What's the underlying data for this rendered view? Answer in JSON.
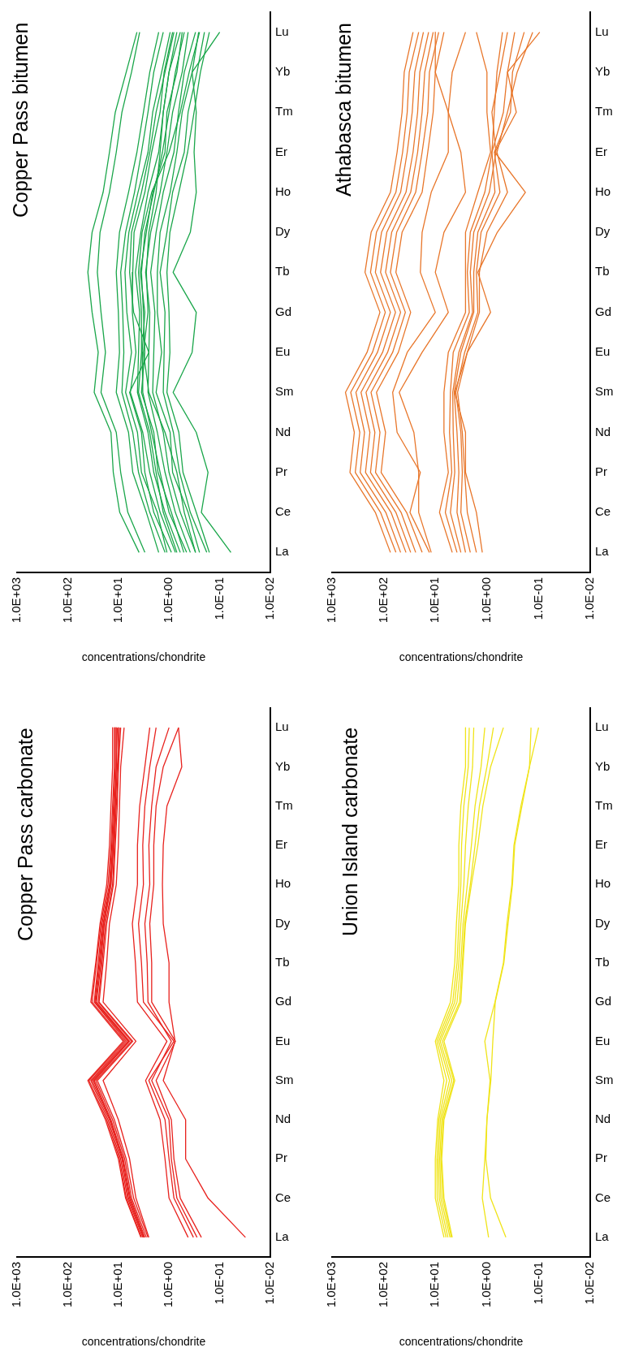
{
  "chart_data": [
    {
      "type": "line",
      "orientation": "horizontal",
      "title": "Copper Pass bitumen",
      "xlabel": "concentrations/chondrite",
      "categories": [
        "Lu",
        "Yb",
        "Tm",
        "Er",
        "Ho",
        "Dy",
        "Tb",
        "Gd",
        "Eu",
        "Sm",
        "Nd",
        "Pr",
        "Ce",
        "La"
      ],
      "log": "x",
      "xlim": [
        1000,
        0.01
      ],
      "xticks": [
        {
          "value": 1000,
          "label": "1.0E+03"
        },
        {
          "value": 100,
          "label": "1.0E+02"
        },
        {
          "value": 10,
          "label": "1.0E+01"
        },
        {
          "value": 1,
          "label": "1.0E+00"
        },
        {
          "value": 0.1,
          "label": "1.0E-01"
        },
        {
          "value": 0.01,
          "label": "1.0E-02"
        }
      ],
      "marker": "none",
      "series": [
        {
          "color": "#1aa64a",
          "values": [
            4.3,
            7,
            11.5,
            15,
            20,
            33,
            40,
            33,
            25,
            30,
            14,
            12.6,
            9.4,
            3.9
          ]
        },
        {
          "color": "#1aa64a",
          "values": [
            3.8,
            5.5,
            8.5,
            11,
            15,
            23,
            26,
            22,
            18,
            22,
            11,
            9,
            6.5,
            3.0
          ]
        },
        {
          "color": "#1aa64a",
          "values": [
            1.6,
            2.4,
            3.2,
            4.3,
            6.3,
            9.5,
            11,
            10,
            9.5,
            11,
            6.3,
            5.2,
            2.8,
            1.6
          ]
        },
        {
          "color": "#1aa64a",
          "values": [
            1.3,
            2.0,
            2.6,
            3.5,
            4.8,
            7.2,
            9,
            8.2,
            7.8,
            8.5,
            5.2,
            4.0,
            2.4,
            1.2
          ]
        },
        {
          "color": "#1aa64a",
          "values": [
            0.95,
            1.4,
            2.1,
            2.6,
            4.1,
            6.2,
            7.4,
            6.8,
            5.5,
            7.2,
            4.2,
            3.5,
            1.7,
            1.1
          ]
        },
        {
          "color": "#1aa64a",
          "values": [
            0.85,
            1.25,
            1.5,
            2.2,
            3.0,
            4.9,
            5.2,
            5.3,
            4.5,
            5.8,
            3.3,
            2.4,
            1.5,
            0.75
          ]
        },
        {
          "color": "#1aa64a",
          "values": [
            0.6,
            1.0,
            1.3,
            1.6,
            2.6,
            3.6,
            4.6,
            3.8,
            4.0,
            4.2,
            2.6,
            2.0,
            1.2,
            0.6
          ]
        },
        {
          "color": "#1aa64a",
          "values": [
            0.5,
            0.75,
            1.0,
            1.35,
            2,
            3,
            3.5,
            3.2,
            3,
            3.5,
            2,
            1.65,
            0.9,
            0.51
          ]
        },
        {
          "color": "#1aa64a",
          "values": [
            0.55,
            0.7,
            1.1,
            1.2,
            2.1,
            2.8,
            3.7,
            3.0,
            3.4,
            3.3,
            2.2,
            1.5,
            1.0,
            0.45
          ]
        },
        {
          "color": "#1aa64a",
          "values": [
            0.42,
            0.55,
            0.85,
            1.1,
            1.5,
            2.3,
            2.9,
            2.4,
            2.5,
            2.6,
            1.7,
            1.2,
            0.75,
            0.38
          ]
        },
        {
          "color": "#1aa64a",
          "values": [
            0.3,
            0.5,
            0.65,
            0.8,
            1.3,
            1.8,
            2.3,
            1.9,
            2.0,
            2.1,
            1.3,
            1.0,
            0.6,
            0.3
          ]
        },
        {
          "color": "#1aa64a",
          "values": [
            0.26,
            0.35,
            0.55,
            0.7,
            0.95,
            1.5,
            1.7,
            1.7,
            1.4,
            1.8,
            0.95,
            0.85,
            0.42,
            0.25
          ]
        },
        {
          "color": "#1aa64a",
          "values": [
            0.2,
            0.28,
            0.42,
            0.5,
            0.85,
            1.1,
            1.5,
            1.2,
            1.25,
            1.3,
            0.82,
            0.62,
            0.38,
            0.18
          ]
        },
        {
          "color": "#1aa64a",
          "values": [
            0.16,
            0.24,
            0.32,
            0.43,
            0.64,
            0.96,
            1.1,
            1.0,
            0.96,
            1.1,
            0.64,
            0.53,
            0.29,
            0.16
          ]
        },
        {
          "color": "#1aa64a",
          "values": [
            0.8,
            1.2,
            1.8,
            2.4,
            3.5,
            5.5,
            6,
            5,
            2.5,
            6,
            3.5,
            3.0,
            2.0,
            0.9
          ]
        },
        {
          "color": "#1aa64a",
          "values": [
            0.7,
            1.0,
            1.3,
            1.5,
            1.8,
            2.5,
            2.8,
            2.6,
            3.2,
            2.5,
            1.2,
            0.7,
            0.5,
            0.3
          ]
        },
        {
          "color": "#1aa64a",
          "values": [
            0.25,
            0.4,
            0.6,
            1.0,
            2.2,
            3.4,
            4.0,
            3.5,
            3.5,
            4.0,
            2.4,
            1.8,
            1.3,
            0.7
          ]
        },
        {
          "color": "#1aa64a",
          "values": [
            0.1,
            0.35,
            0.29,
            0.32,
            0.29,
            0.38,
            0.83,
            0.29,
            0.35,
            0.83,
            0.29,
            0.17,
            0.23,
            0.06
          ]
        }
      ]
    },
    {
      "type": "line",
      "orientation": "horizontal",
      "title": "Athabasca bitumen",
      "xlabel": "concentrations/chondrite",
      "categories": [
        "Lu",
        "Yb",
        "Tm",
        "Er",
        "Ho",
        "Dy",
        "Tb",
        "Gd",
        "Eu",
        "Sm",
        "Nd",
        "Pr",
        "Ce",
        "La"
      ],
      "log": "x",
      "xlim": [
        1000,
        0.01
      ],
      "xticks": [
        {
          "value": 1000,
          "label": "1.0E+03"
        },
        {
          "value": 100,
          "label": "1.0E+02"
        },
        {
          "value": 10,
          "label": "1.0E+01"
        },
        {
          "value": 1,
          "label": "1.0E+00"
        },
        {
          "value": 0.1,
          "label": "1.0E-01"
        },
        {
          "value": 0.01,
          "label": "1.0E-02"
        }
      ],
      "marker": "none",
      "series": [
        {
          "color": "#e8762a",
          "values": [
            27,
            40,
            44,
            55,
            74,
            175,
            230,
            118,
            210,
            550,
            370,
            450,
            145,
            74
          ]
        },
        {
          "color": "#e8762a",
          "values": [
            21,
            32,
            35,
            43,
            58,
            138,
            180,
            93,
            165,
            435,
            290,
            355,
            115,
            58
          ]
        },
        {
          "color": "#e8762a",
          "values": [
            17,
            25,
            28,
            35,
            47,
            110,
            145,
            74,
            132,
            345,
            235,
            285,
            91,
            47
          ]
        },
        {
          "color": "#e8762a",
          "values": [
            13.5,
            20,
            22,
            27,
            37,
            87,
            115,
            59,
            105,
            275,
            185,
            225,
            72,
            37
          ]
        },
        {
          "color": "#e8762a",
          "values": [
            11,
            16,
            18,
            22,
            30,
            70,
            92,
            47,
            84,
            220,
            148,
            180,
            58,
            30
          ]
        },
        {
          "color": "#e8762a",
          "values": [
            8.6,
            13,
            14,
            18,
            24,
            56,
            74,
            38,
            67,
            176,
            118,
            144,
            46,
            24
          ]
        },
        {
          "color": "#e8762a",
          "values": [
            6.8,
            10,
            11,
            14,
            18,
            44,
            58,
            30,
            52,
            138,
            92,
            112,
            36,
            18
          ]
        },
        {
          "color": "#e8762a",
          "values": [
            10,
            10,
            5.6,
            5.6,
            12,
            18,
            19.5,
            10,
            35,
            67,
            55,
            19.5,
            31,
            13
          ]
        },
        {
          "color": "#e8762a",
          "values": [
            2.6,
            4.7,
            5.6,
            3.2,
            2.6,
            6.8,
            10,
            5.6,
            18,
            50,
            26,
            21,
            21,
            12
          ]
        },
        {
          "color": "#e8762a",
          "values": [
            1.6,
            1.0,
            1.0,
            0.85,
            1.5,
            2.6,
            2.6,
            2.6,
            5.6,
            6.8,
            6.8,
            5.6,
            8.3,
            4.7
          ]
        },
        {
          "color": "#e8762a",
          "values": [
            0.5,
            0.64,
            0.72,
            0.8,
            1.1,
            2.1,
            2.4,
            2.2,
            4.5,
            5.1,
            5.3,
            4.8,
            6.4,
            3.8
          ]
        },
        {
          "color": "#e8762a",
          "values": [
            0.4,
            0.56,
            0.8,
            0.67,
            0.9,
            1.8,
            2.1,
            1.9,
            3.5,
            4.6,
            4.5,
            4.2,
            5.1,
            3.2
          ]
        },
        {
          "color": "#e8762a",
          "values": [
            0.29,
            0.4,
            0.48,
            0.8,
            0.7,
            1.5,
            1.8,
            1.8,
            3.2,
            4.3,
            3.8,
            3.5,
            3.8,
            2.6
          ]
        },
        {
          "color": "#e8762a",
          "values": [
            0.19,
            0.32,
            0.35,
            0.72,
            0.56,
            1.3,
            1.6,
            1.5,
            2.7,
            4.0,
            3.2,
            3.0,
            3.2,
            2.1
          ]
        },
        {
          "color": "#e8762a",
          "values": [
            0.13,
            0.26,
            0.4,
            0.64,
            0.4,
            1.0,
            1.4,
            1.4,
            2.4,
            3.7,
            3.0,
            2.7,
            2.4,
            1.6
          ]
        },
        {
          "color": "#e8762a",
          "values": [
            0.095,
            0.4,
            0.27,
            0.7,
            0.18,
            0.63,
            1.5,
            0.85,
            2.4,
            4.2,
            2.6,
            2.6,
            1.6,
            1.23
          ]
        }
      ]
    },
    {
      "type": "line",
      "orientation": "horizontal",
      "title": "Copper Pass carbonate",
      "xlabel": "concentrations/chondrite",
      "categories": [
        "Lu",
        "Yb",
        "Tm",
        "Er",
        "Ho",
        "Dy",
        "Tb",
        "Gd",
        "Eu",
        "Sm",
        "Nd",
        "Pr",
        "Ce",
        "La"
      ],
      "log": "x",
      "xlim": [
        1000,
        0.01
      ],
      "xticks": [
        {
          "value": 1000,
          "label": "1.0E+03"
        },
        {
          "value": 100,
          "label": "1.0E+02"
        },
        {
          "value": 10,
          "label": "1.0E+01"
        },
        {
          "value": 1,
          "label": "1.0E+00"
        },
        {
          "value": 0.1,
          "label": "1.0E-01"
        },
        {
          "value": 0.01,
          "label": "1.0E-02"
        }
      ],
      "marker": "none",
      "series": [
        {
          "color": "#e8221e",
          "values": [
            12,
            12,
            13,
            14,
            16,
            22,
            27,
            33,
            7.5,
            38,
            17,
            9.5,
            7,
            3.5
          ]
        },
        {
          "color": "#e8221e",
          "values": [
            11,
            11,
            12,
            13,
            14.5,
            20,
            24,
            29,
            6.5,
            33,
            15,
            8.5,
            6.3,
            3.2
          ]
        },
        {
          "color": "#e8221e",
          "values": [
            10.5,
            11,
            11.5,
            12.5,
            14,
            19,
            22,
            27,
            6,
            30,
            14,
            8,
            5.8,
            3.0
          ]
        },
        {
          "color": "#e8221e",
          "values": [
            11.5,
            11.5,
            12.5,
            13.5,
            15,
            21,
            25,
            30,
            7,
            35,
            16,
            9,
            6.6,
            3.3
          ]
        },
        {
          "color": "#e8221e",
          "values": [
            10,
            10,
            11,
            12,
            13,
            18,
            21,
            25,
            5.5,
            28,
            13,
            7.5,
            5.5,
            2.8
          ]
        },
        {
          "color": "#e8221e",
          "values": [
            13,
            13,
            14,
            15,
            17,
            23,
            28,
            35,
            8,
            40,
            18,
            10,
            7.2,
            3.6
          ]
        },
        {
          "color": "#e8221e",
          "values": [
            9.5,
            10.5,
            11.5,
            12.5,
            14,
            19.5,
            23,
            28,
            6.2,
            31,
            14.5,
            8.2,
            6,
            3.1
          ]
        },
        {
          "color": "#e8221e",
          "values": [
            9,
            10,
            10.5,
            11.5,
            12.5,
            17,
            20,
            24,
            5.2,
            26,
            12,
            7,
            5,
            2.6
          ]
        },
        {
          "color": "#e8221e",
          "values": [
            7.7,
            9,
            9.5,
            10,
            11,
            15,
            17,
            20,
            4.5,
            20,
            10,
            6,
            4.5,
            2.5
          ]
        },
        {
          "color": "#e8221e",
          "values": [
            2.4,
            3.0,
            3.8,
            4.2,
            4.2,
            5.3,
            4.6,
            4.2,
            1.1,
            2.9,
            1.5,
            1.2,
            1.0,
            0.42
          ]
        },
        {
          "color": "#e8221e",
          "values": [
            1.8,
            2.4,
            3,
            3.3,
            3.2,
            4,
            3.5,
            3.2,
            0.8,
            2.5,
            1.2,
            1.0,
            0.8,
            0.33
          ]
        },
        {
          "color": "#e8221e",
          "values": [
            1.0,
            1.8,
            2.2,
            2.5,
            2.4,
            3,
            2.7,
            2.6,
            0.9,
            2.2,
            1.0,
            0.9,
            0.7,
            0.28
          ]
        },
        {
          "color": "#e8221e",
          "values": [
            0.65,
            1.3,
            1.8,
            2,
            2,
            2.4,
            2.2,
            2.2,
            0.75,
            1.8,
            0.9,
            0.8,
            0.6,
            0.23
          ]
        },
        {
          "color": "#e8221e",
          "values": [
            0.65,
            0.56,
            1.1,
            1.3,
            1.35,
            1.3,
            1.0,
            1.0,
            0.76,
            1.3,
            0.47,
            0.47,
            0.17,
            0.031
          ]
        }
      ]
    },
    {
      "type": "line",
      "orientation": "horizontal",
      "title": "Union Island carbonate",
      "xlabel": "concentrations/chondrite",
      "categories": [
        "Lu",
        "Yb",
        "Tm",
        "Er",
        "Ho",
        "Dy",
        "Tb",
        "Gd",
        "Eu",
        "Sm",
        "Nd",
        "Pr",
        "Ce",
        "La"
      ],
      "log": "x",
      "xlim": [
        1000,
        0.01
      ],
      "xticks": [
        {
          "value": 1000,
          "label": "1.0E+03"
        },
        {
          "value": 100,
          "label": "1.0E+02"
        },
        {
          "value": 10,
          "label": "1.0E+01"
        },
        {
          "value": 1,
          "label": "1.0E+00"
        },
        {
          "value": 0.1,
          "label": "1.0E-01"
        },
        {
          "value": 0.01,
          "label": "1.0E-02"
        }
      ],
      "marker": "none",
      "series": [
        {
          "color": "#f0e419",
          "values": [
            2.6,
            2.6,
            3.2,
            3.5,
            3.5,
            3.9,
            4.2,
            5.1,
            10,
            6.8,
            9,
            10,
            10,
            6.8
          ]
        },
        {
          "color": "#f0e419",
          "values": [
            2.2,
            2.3,
            2.8,
            3.1,
            3.2,
            3.5,
            3.8,
            4.6,
            9.3,
            6.0,
            8.5,
            9.3,
            9.2,
            6.2
          ]
        },
        {
          "color": "#f0e419",
          "values": [
            1.8,
            1.9,
            2.3,
            2.6,
            2.8,
            3.2,
            3.5,
            4.2,
            8.6,
            5.3,
            8.0,
            8.7,
            8.4,
            5.7
          ]
        },
        {
          "color": "#f0e419",
          "values": [
            1.1,
            1.3,
            1.7,
            2.0,
            2.4,
            2.9,
            3.2,
            3.8,
            8.0,
            4.8,
            7.5,
            8.2,
            7.8,
            5.2
          ]
        },
        {
          "color": "#f0e419",
          "values": [
            0.75,
            1.0,
            1.4,
            1.7,
            2.1,
            2.7,
            3.0,
            3.4,
            7.3,
            4.4,
            7.1,
            7.8,
            7.2,
            4.9
          ]
        },
        {
          "color": "#f0e419",
          "values": [
            0.48,
            0.85,
            1.2,
            1.5,
            2.0,
            2.6,
            2.9,
            3.2,
            6.8,
            4.2,
            6.8,
            7.5,
            6.8,
            4.7
          ]
        },
        {
          "color": "#f0e419",
          "values": [
            0.14,
            0.15,
            0.22,
            0.3,
            0.33,
            0.41,
            0.48,
            0.7,
            1.1,
            0.87,
            1.0,
            1.1,
            1.23,
            0.93
          ]
        },
        {
          "color": "#f0e419",
          "values": [
            0.1,
            0.15,
            0.21,
            0.29,
            0.32,
            0.39,
            0.47,
            0.69,
            0.77,
            0.84,
            1.0,
            1.05,
            0.85,
            0.43
          ]
        }
      ]
    }
  ]
}
